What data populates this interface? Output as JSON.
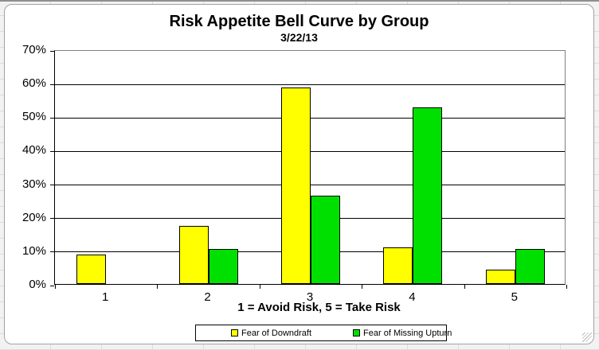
{
  "chart": {
    "title": "Risk Appetite Bell Curve by Group",
    "subtitle": "3/22/13",
    "x_axis_title": "1 = Avoid Risk, 5 = Take Risk"
  },
  "chart_data": {
    "type": "bar",
    "title": "Risk Appetite Bell Curve by Group",
    "subtitle": "3/22/13",
    "categories": [
      "1",
      "2",
      "3",
      "4",
      "5"
    ],
    "series": [
      {
        "name": "Fear of Downdraft",
        "color": "#FFFF00",
        "values": [
          8.7,
          17.4,
          58.7,
          10.9,
          4.3
        ]
      },
      {
        "name": "Fear of Missing Upturn",
        "color": "#00E000",
        "values": [
          0,
          10.5,
          26.3,
          52.6,
          10.5
        ]
      }
    ],
    "xlabel": "1 = Avoid Risk, 5 = Take Risk",
    "ylabel": "",
    "ylim": [
      0,
      70
    ],
    "y_tick_step": 10,
    "y_tick_labels": [
      "0%",
      "10%",
      "20%",
      "30%",
      "40%",
      "50%",
      "60%",
      "70%"
    ],
    "grid": true,
    "legend_position": "bottom",
    "colors": {
      "plot_border": "#808080",
      "gridline": "#000000",
      "bar_outline": "#000000"
    }
  }
}
